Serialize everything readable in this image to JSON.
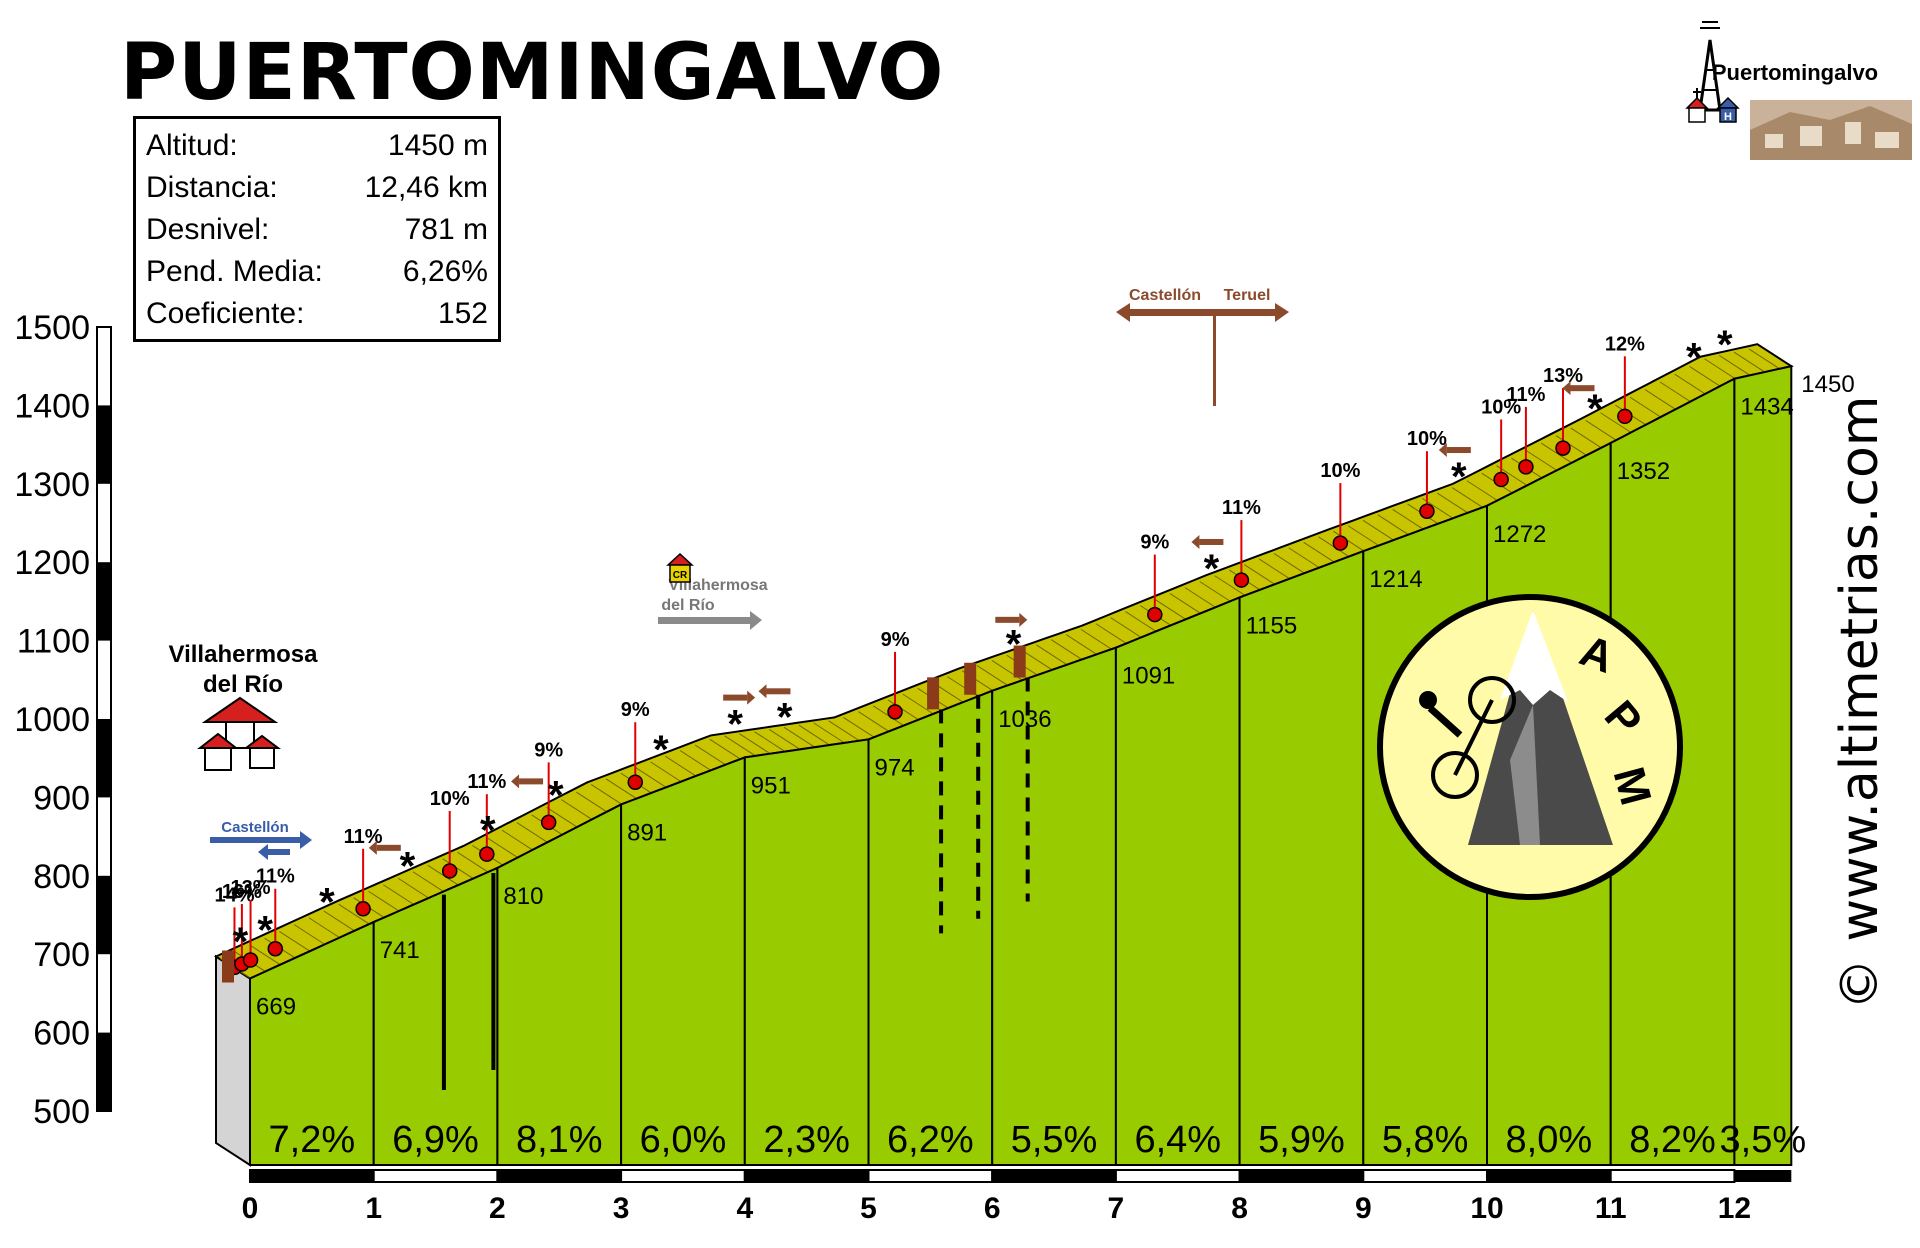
{
  "title": "PUERTOMINGALVO",
  "stats": [
    {
      "label": "Altitud:",
      "value": "1450 m"
    },
    {
      "label": "Distancia:",
      "value": "12,46 km"
    },
    {
      "label": "Desnivel:",
      "value": "781 m"
    },
    {
      "label": "Pend. Media:",
      "value": "6,26%"
    },
    {
      "label": "Coeficiente:",
      "value": "152"
    }
  ],
  "copyright": "© www.altimetrias.com",
  "logo_letters": [
    "A",
    "P",
    "M"
  ],
  "places": {
    "start": [
      "Villahermosa",
      "del Río"
    ],
    "finish": "Puertomingalvo",
    "mid_village": [
      "Villahermosa",
      "del Río"
    ],
    "mid_sign": "CR",
    "junction": [
      "Castellón",
      "Teruel"
    ],
    "start_sign": "Castellón"
  },
  "colors": {
    "fill": "#99cc00",
    "road": "#c8c400",
    "grid": "#000000",
    "marker": "#e00000",
    "arrow_brown": "#8b4a2b",
    "arrow_blue": "#3a5da8"
  },
  "chart_data": {
    "type": "area",
    "title": "PUERTOMINGALVO",
    "xlabel": "",
    "ylabel": "",
    "xlim": [
      0,
      12.46
    ],
    "ylim": [
      500,
      1500
    ],
    "x_ticks": [
      "0",
      "1",
      "2",
      "3",
      "4",
      "5",
      "6",
      "7",
      "8",
      "9",
      "10",
      "11",
      "12"
    ],
    "y_ticks": [
      "500",
      "600",
      "700",
      "800",
      "900",
      "1000",
      "1100",
      "1200",
      "1300",
      "1400",
      "1500"
    ],
    "grid": false,
    "km": [
      0,
      1,
      2,
      3,
      4,
      5,
      6,
      7,
      8,
      9,
      10,
      11,
      12,
      12.46
    ],
    "altitude": [
      669,
      741,
      810,
      891,
      951,
      974,
      1036,
      1091,
      1155,
      1214,
      1272,
      1352,
      1434,
      1450
    ],
    "altitude_labels": [
      "669",
      "741",
      "810",
      "891",
      "951",
      "974",
      "1036",
      "1091",
      "1155",
      "1214",
      "1272",
      "1352",
      "1434",
      "1450"
    ],
    "segment_gradients": [
      "7,2%",
      "6,9%",
      "8,1%",
      "6,0%",
      "2,3%",
      "6,2%",
      "5,5%",
      "6,4%",
      "5,9%",
      "5,8%",
      "8,0%",
      "8,2%",
      "3,5%"
    ],
    "ramps": [
      {
        "km": 0.02,
        "label": "14%"
      },
      {
        "km": 0.08,
        "label": "16%"
      },
      {
        "km": 0.15,
        "label": "13%"
      },
      {
        "km": 0.35,
        "label": "11%"
      },
      {
        "km": 1.06,
        "label": "11%"
      },
      {
        "km": 1.76,
        "label": "10%"
      },
      {
        "km": 2.06,
        "label": "11%"
      },
      {
        "km": 2.56,
        "label": "9%"
      },
      {
        "km": 3.26,
        "label": "9%"
      },
      {
        "km": 5.36,
        "label": "9%"
      },
      {
        "km": 7.46,
        "label": "9%"
      },
      {
        "km": 8.16,
        "label": "11%"
      },
      {
        "km": 8.96,
        "label": "10%"
      },
      {
        "km": 9.66,
        "label": "10%"
      },
      {
        "km": 10.26,
        "label": "10%"
      },
      {
        "km": 10.46,
        "label": "11%"
      },
      {
        "km": 10.76,
        "label": "13%"
      },
      {
        "km": 11.26,
        "label": "12%"
      }
    ]
  }
}
